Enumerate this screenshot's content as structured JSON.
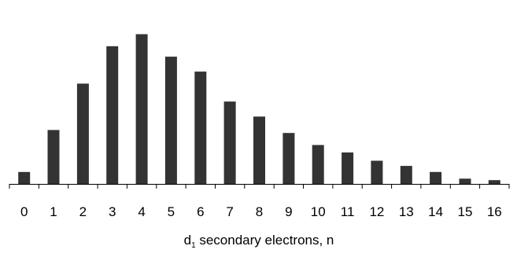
{
  "colors": {
    "bar": "#333333",
    "axis": "#000000",
    "background": "#ffffff"
  },
  "chart_data": {
    "type": "bar",
    "categories": [
      "0",
      "1",
      "2",
      "3",
      "4",
      "5",
      "6",
      "7",
      "8",
      "9",
      "10",
      "11",
      "12",
      "13",
      "14",
      "15",
      "16"
    ],
    "series": [
      {
        "values": [
          0.08,
          0.36,
          0.67,
          0.92,
          1.0,
          0.85,
          0.75,
          0.55,
          0.45,
          0.34,
          0.26,
          0.21,
          0.155,
          0.12,
          0.08,
          0.035,
          0.025
        ]
      }
    ],
    "title": "",
    "xlabel": {
      "main": "d",
      "subscript": "1",
      "rest": " secondary electrons, n"
    },
    "ylabel": "",
    "ylim": [
      0,
      1.05
    ],
    "grid": false,
    "legend": "none"
  }
}
